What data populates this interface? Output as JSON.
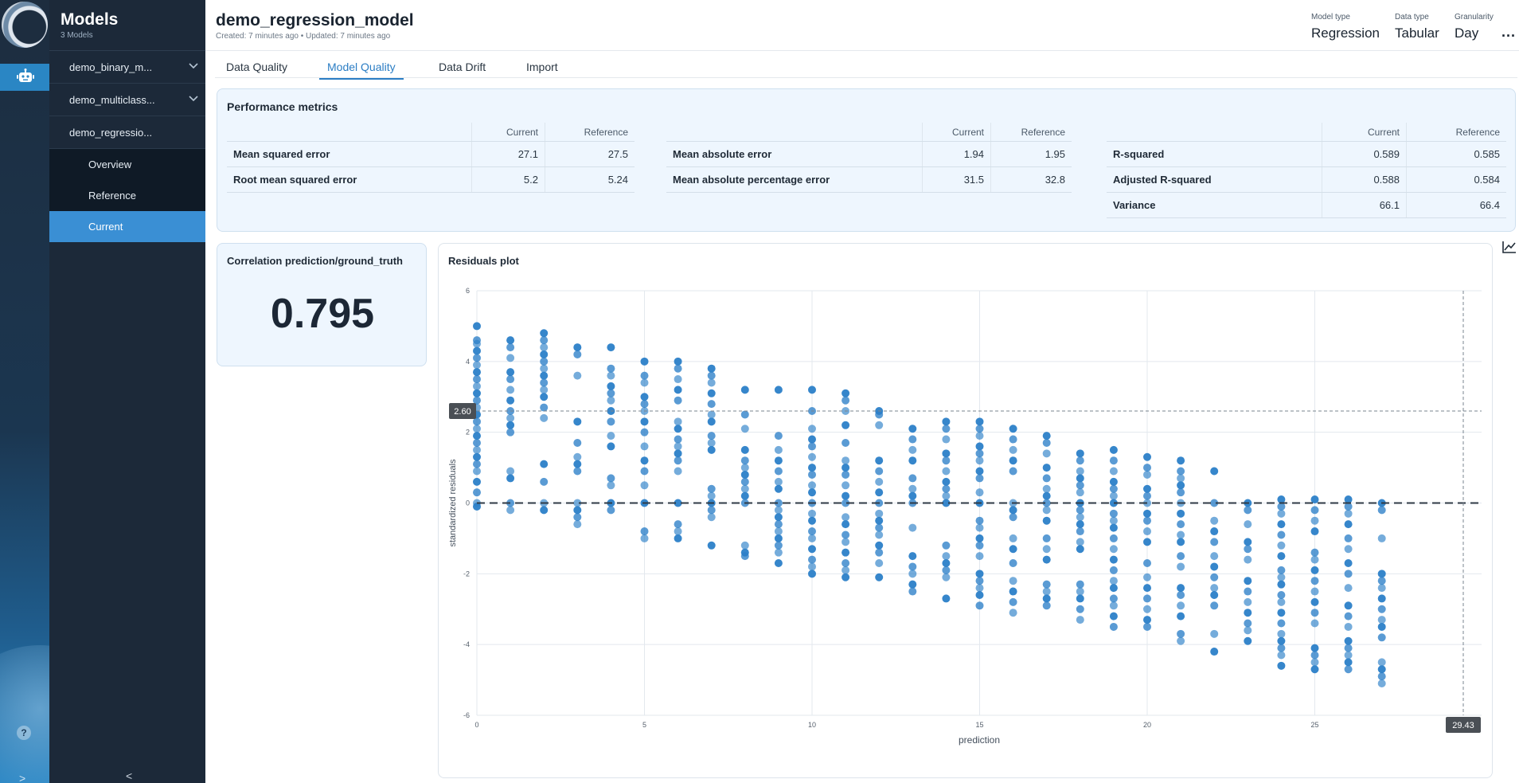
{
  "sidebar": {
    "title": "Models",
    "subtitle": "3 Models",
    "items": [
      {
        "label": "demo_binary_m...",
        "icon": "chevron-down-icon"
      },
      {
        "label": "demo_multiclass...",
        "icon": "chevron-down-icon"
      },
      {
        "label": "demo_regressio..."
      }
    ],
    "subitems": [
      "Overview",
      "Reference",
      "Current"
    ],
    "active_subitem": "Current"
  },
  "rail": {
    "icons": [
      "logo-icon",
      "robot-icon",
      "help-icon",
      "expand-icon"
    ],
    "help_glyph": "?",
    "expand_glyph": ">",
    "collapse_glyph": "<"
  },
  "header": {
    "title": "demo_regression_model",
    "meta": "Created: 7 minutes ago • Updated: 7 minutes ago",
    "stats": [
      {
        "label": "Model type",
        "value": "Regression"
      },
      {
        "label": "Data type",
        "value": "Tabular"
      },
      {
        "label": "Granularity",
        "value": "Day"
      }
    ],
    "more": "..."
  },
  "tabs": [
    {
      "label": "Data Quality"
    },
    {
      "label": "Model Quality"
    },
    {
      "label": "Data Drift"
    },
    {
      "label": "Import"
    }
  ],
  "active_tab": "Model Quality",
  "performance": {
    "title": "Performance metrics",
    "col_current": "Current",
    "col_reference": "Reference",
    "groups": [
      {
        "rows": [
          {
            "name": "Mean squared error",
            "current": "27.1",
            "reference": "27.5"
          },
          {
            "name": "Root mean squared error",
            "current": "5.2",
            "reference": "5.24"
          }
        ]
      },
      {
        "rows": [
          {
            "name": "Mean absolute error",
            "current": "1.94",
            "reference": "1.95"
          },
          {
            "name": "Mean absolute percentage error",
            "current": "31.5",
            "reference": "32.8"
          }
        ]
      },
      {
        "rows": [
          {
            "name": "R-squared",
            "current": "0.589",
            "reference": "0.585"
          },
          {
            "name": "Adjusted R-squared",
            "current": "0.588",
            "reference": "0.584"
          },
          {
            "name": "Variance",
            "current": "66.1",
            "reference": "66.4"
          }
        ]
      }
    ]
  },
  "correlation": {
    "title": "Correlation prediction/ground_truth",
    "value": "0.795"
  },
  "residuals": {
    "title": "Residuals plot",
    "icon": "line-chart-icon"
  },
  "chart_data": {
    "type": "scatter",
    "title": "Residuals plot",
    "xlabel": "prediction",
    "ylabel": "standardized residuals",
    "xlim": [
      0,
      30
    ],
    "ylim": [
      -6,
      6
    ],
    "xticks": [
      0,
      5,
      10,
      15,
      20,
      25
    ],
    "yticks": [
      -6,
      -4,
      -2,
      0,
      2,
      4,
      6
    ],
    "crosshair": {
      "x": 29.43,
      "y": 2.6,
      "x_label": "29.43",
      "y_label": "2.60"
    },
    "reference_line_y": 0,
    "color": "#2b7fc8",
    "columns": [
      {
        "x": 0,
        "y": [
          5.0,
          4.6,
          4.5,
          4.3,
          4.1,
          3.9,
          3.7,
          3.5,
          3.3,
          3.1,
          2.9,
          2.7,
          2.5,
          2.3,
          2.1,
          1.9,
          1.7,
          1.5,
          1.3,
          1.1,
          0.9,
          0.6,
          0.3,
          0.0,
          -0.1
        ]
      },
      {
        "x": 1,
        "y": [
          4.6,
          4.4,
          4.1,
          3.7,
          3.5,
          3.2,
          2.9,
          2.6,
          2.4,
          2.2,
          2.0,
          0.9,
          0.7,
          0.0,
          -0.2
        ]
      },
      {
        "x": 2,
        "y": [
          4.8,
          4.6,
          4.4,
          4.2,
          4.0,
          3.8,
          3.6,
          3.4,
          3.2,
          3.0,
          2.7,
          2.4,
          1.1,
          0.6,
          0.0,
          -0.2
        ]
      },
      {
        "x": 3,
        "y": [
          4.4,
          4.2,
          3.6,
          2.3,
          1.7,
          1.3,
          1.1,
          0.9,
          0.0,
          -0.2,
          -0.4,
          -0.6
        ]
      },
      {
        "x": 4,
        "y": [
          4.4,
          3.8,
          3.6,
          3.3,
          3.1,
          2.9,
          2.6,
          2.3,
          1.9,
          1.6,
          0.7,
          0.5,
          0.0,
          -0.2
        ]
      },
      {
        "x": 5,
        "y": [
          4.0,
          3.6,
          3.4,
          3.0,
          2.8,
          2.6,
          2.3,
          2.0,
          1.6,
          1.2,
          0.9,
          0.5,
          0.0,
          -0.8,
          -1.0
        ]
      },
      {
        "x": 6,
        "y": [
          4.0,
          3.8,
          3.5,
          3.2,
          2.9,
          2.3,
          2.1,
          1.8,
          1.6,
          1.4,
          1.2,
          0.9,
          0.0,
          -0.6,
          -0.8,
          -1.0
        ]
      },
      {
        "x": 7,
        "y": [
          3.8,
          3.6,
          3.4,
          3.1,
          2.8,
          2.5,
          2.3,
          1.9,
          1.7,
          1.5,
          0.4,
          0.2,
          0.0,
          -0.2,
          -0.4,
          -1.2
        ]
      },
      {
        "x": 8,
        "y": [
          3.2,
          2.5,
          2.1,
          1.5,
          1.2,
          1.0,
          0.8,
          0.6,
          0.4,
          0.2,
          0.0,
          -1.2,
          -1.4,
          -1.5
        ]
      },
      {
        "x": 9,
        "y": [
          3.2,
          1.9,
          1.5,
          1.2,
          0.9,
          0.6,
          0.4,
          0.0,
          -0.2,
          -0.4,
          -0.6,
          -0.8,
          -1.0,
          -1.2,
          -1.4,
          -1.7
        ]
      },
      {
        "x": 10,
        "y": [
          3.2,
          2.6,
          2.1,
          1.8,
          1.6,
          1.3,
          1.0,
          0.8,
          0.5,
          0.3,
          0.0,
          -0.3,
          -0.5,
          -0.8,
          -1.0,
          -1.3,
          -1.6,
          -1.8,
          -2.0
        ]
      },
      {
        "x": 11,
        "y": [
          3.1,
          2.9,
          2.6,
          2.2,
          1.7,
          1.2,
          1.0,
          0.8,
          0.5,
          0.2,
          0.0,
          -0.4,
          -0.6,
          -0.9,
          -1.1,
          -1.4,
          -1.7,
          -1.9,
          -2.1
        ]
      },
      {
        "x": 12,
        "y": [
          2.6,
          2.5,
          2.2,
          1.2,
          0.9,
          0.6,
          0.3,
          0.0,
          -0.3,
          -0.5,
          -0.7,
          -0.9,
          -1.2,
          -1.4,
          -1.7,
          -2.1
        ]
      },
      {
        "x": 13,
        "y": [
          2.1,
          1.8,
          1.5,
          1.2,
          0.7,
          0.4,
          0.2,
          0.0,
          -0.7,
          -1.5,
          -1.8,
          -2.0,
          -2.3,
          -2.5
        ]
      },
      {
        "x": 14,
        "y": [
          2.3,
          2.1,
          1.8,
          1.4,
          1.2,
          0.9,
          0.6,
          0.4,
          0.2,
          0.0,
          -1.2,
          -1.5,
          -1.7,
          -1.9,
          -2.1,
          -2.7
        ]
      },
      {
        "x": 15,
        "y": [
          2.3,
          2.1,
          1.9,
          1.6,
          1.4,
          1.2,
          0.9,
          0.7,
          0.3,
          0.0,
          -0.5,
          -0.7,
          -1.0,
          -1.2,
          -1.5,
          -2.0,
          -2.2,
          -2.4,
          -2.6,
          -2.9
        ]
      },
      {
        "x": 16,
        "y": [
          2.1,
          1.8,
          1.5,
          1.2,
          0.9,
          0.0,
          -0.2,
          -0.4,
          -1.0,
          -1.3,
          -1.7,
          -2.2,
          -2.5,
          -2.8,
          -3.1
        ]
      },
      {
        "x": 17,
        "y": [
          1.9,
          1.7,
          1.4,
          1.0,
          0.7,
          0.4,
          0.2,
          0.0,
          -0.2,
          -0.5,
          -1.0,
          -1.3,
          -1.6,
          -2.3,
          -2.5,
          -2.7,
          -2.9
        ]
      },
      {
        "x": 18,
        "y": [
          1.4,
          1.2,
          0.9,
          0.7,
          0.5,
          0.3,
          0.0,
          -0.2,
          -0.4,
          -0.6,
          -0.8,
          -1.1,
          -1.3,
          -2.3,
          -2.5,
          -2.7,
          -3.0,
          -3.3
        ]
      },
      {
        "x": 19,
        "y": [
          1.5,
          1.2,
          0.9,
          0.6,
          0.4,
          0.2,
          0.0,
          -0.3,
          -0.5,
          -0.7,
          -1.0,
          -1.3,
          -1.6,
          -1.9,
          -2.2,
          -2.4,
          -2.7,
          -2.9,
          -3.2,
          -3.5
        ]
      },
      {
        "x": 20,
        "y": [
          1.3,
          1.0,
          0.8,
          0.4,
          0.2,
          0.0,
          -0.3,
          -0.5,
          -0.8,
          -1.1,
          -1.7,
          -2.1,
          -2.4,
          -2.7,
          -3.0,
          -3.3,
          -3.5
        ]
      },
      {
        "x": 21,
        "y": [
          1.2,
          0.9,
          0.7,
          0.5,
          0.3,
          0.0,
          -0.3,
          -0.6,
          -0.9,
          -1.1,
          -1.5,
          -1.8,
          -2.4,
          -2.6,
          -2.9,
          -3.2,
          -3.7,
          -3.9
        ]
      },
      {
        "x": 22,
        "y": [
          0.9,
          0.0,
          -0.5,
          -0.8,
          -1.1,
          -1.5,
          -1.8,
          -2.1,
          -2.4,
          -2.6,
          -2.9,
          -3.7,
          -4.2
        ]
      },
      {
        "x": 23,
        "y": [
          0.0,
          -0.2,
          -0.6,
          -1.1,
          -1.3,
          -1.6,
          -2.2,
          -2.5,
          -2.8,
          -3.1,
          -3.4,
          -3.6,
          -3.9
        ]
      },
      {
        "x": 24,
        "y": [
          0.1,
          -0.1,
          -0.3,
          -0.6,
          -0.9,
          -1.2,
          -1.5,
          -1.9,
          -2.1,
          -2.3,
          -2.6,
          -2.8,
          -3.1,
          -3.4,
          -3.7,
          -3.9,
          -4.1,
          -4.3,
          -4.6
        ]
      },
      {
        "x": 25,
        "y": [
          0.1,
          -0.2,
          -0.5,
          -0.8,
          -1.4,
          -1.6,
          -1.9,
          -2.2,
          -2.5,
          -2.8,
          -3.1,
          -3.4,
          -4.1,
          -4.3,
          -4.5,
          -4.7
        ]
      },
      {
        "x": 26,
        "y": [
          0.1,
          -0.1,
          -0.3,
          -0.6,
          -1.0,
          -1.3,
          -1.7,
          -2.0,
          -2.4,
          -2.9,
          -3.2,
          -3.5,
          -3.9,
          -4.1,
          -4.3,
          -4.5,
          -4.7
        ]
      },
      {
        "x": 27,
        "y": [
          0.0,
          -0.2,
          -1.0,
          -2.0,
          -2.2,
          -2.4,
          -2.7,
          -3.0,
          -3.3,
          -3.5,
          -3.8,
          -4.5,
          -4.7,
          -4.9,
          -5.1
        ]
      }
    ]
  }
}
